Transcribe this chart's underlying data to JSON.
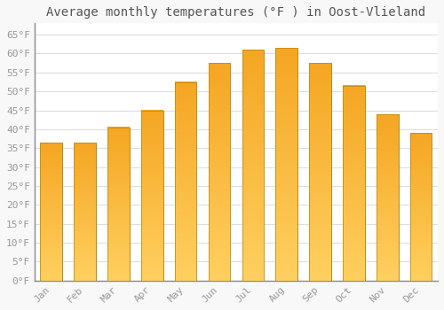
{
  "months": [
    "Jan",
    "Feb",
    "Mar",
    "Apr",
    "May",
    "Jun",
    "Jul",
    "Aug",
    "Sep",
    "Oct",
    "Nov",
    "Dec"
  ],
  "values": [
    36.5,
    36.5,
    40.5,
    45.0,
    52.5,
    57.5,
    61.0,
    61.5,
    57.5,
    51.5,
    44.0,
    39.0
  ],
  "bar_color_top": "#F5A623",
  "bar_color_bottom": "#FFD060",
  "bar_edge_color": "#B8860B",
  "background_color": "#F8F8F8",
  "plot_bg_color": "#FFFFFF",
  "grid_color": "#DDDDDD",
  "title": "Average monthly temperatures (°F ) in Oost-Vlieland",
  "ylim": [
    0,
    68
  ],
  "yticks": [
    0,
    5,
    10,
    15,
    20,
    25,
    30,
    35,
    40,
    45,
    50,
    55,
    60,
    65
  ],
  "ytick_labels": [
    "0°F",
    "5°F",
    "10°F",
    "15°F",
    "20°F",
    "25°F",
    "30°F",
    "35°F",
    "40°F",
    "45°F",
    "50°F",
    "55°F",
    "60°F",
    "65°F"
  ],
  "title_fontsize": 10,
  "tick_fontsize": 8,
  "title_color": "#555555",
  "tick_color": "#999999",
  "font_family": "monospace",
  "bar_width": 0.65
}
